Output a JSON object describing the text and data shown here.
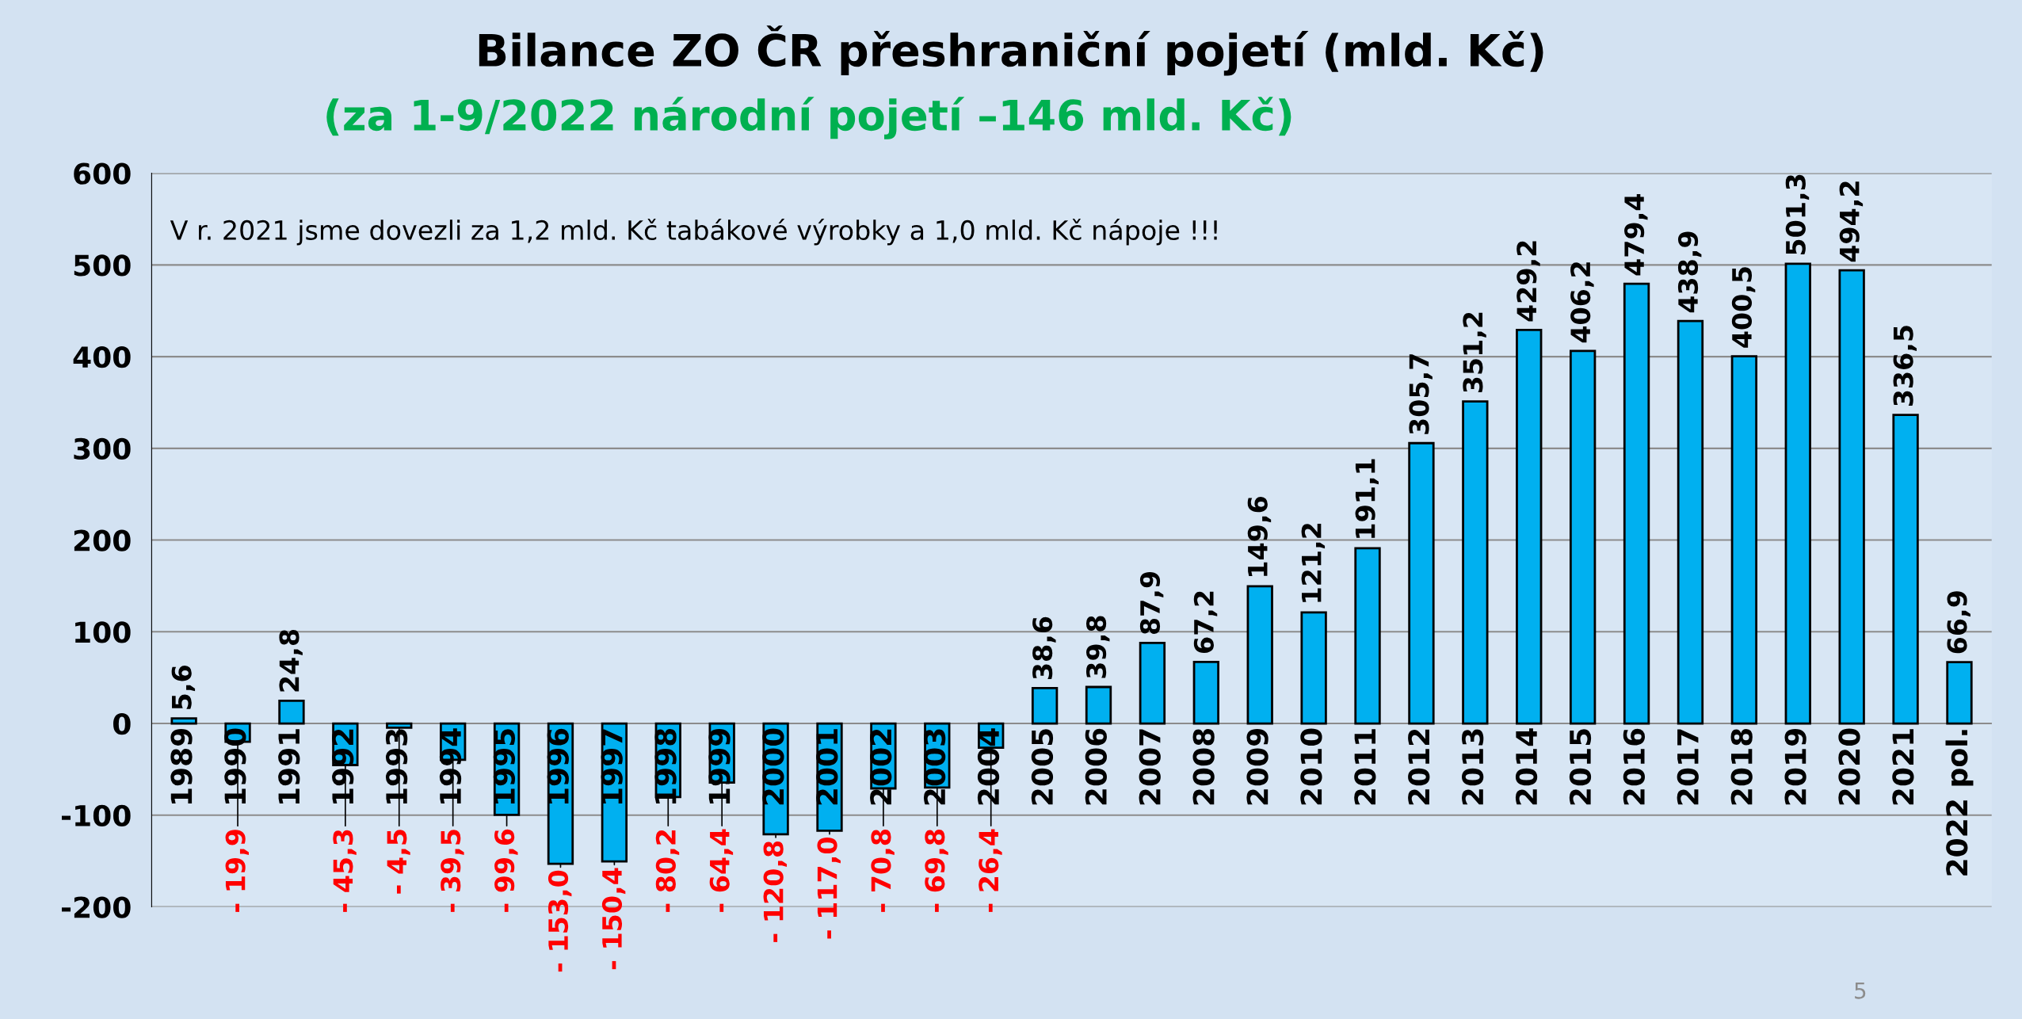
{
  "chart_data": {
    "type": "bar",
    "title": "Bilance ZO ČR přeshraniční pojetí (mld. Kč)",
    "subtitle": "(za 1-9/2022 národní pojetí –146 mld. Kč)",
    "annotations": [
      "V r. 2021 jsme dovezli za 1,2 mld. Kč tabákové výrobky a 1,0 mld. Kč nápoje !!!",
      "5"
    ],
    "categories": [
      "1989",
      "1990",
      "1991",
      "1992",
      "1993",
      "1994",
      "1995",
      "1996",
      "1997",
      "1998",
      "1999",
      "2000",
      "2001",
      "2002",
      "2003",
      "2004",
      "2005",
      "2006",
      "2007",
      "2008",
      "2009",
      "2010",
      "2011",
      "2012",
      "2013",
      "2014",
      "2015",
      "2016",
      "2017",
      "2018",
      "2019",
      "2020",
      "2021",
      "2022 pol."
    ],
    "values": [
      5.6,
      -19.9,
      24.8,
      -45.3,
      -4.5,
      -39.5,
      -99.6,
      -153.0,
      -150.4,
      -80.2,
      -64.4,
      -120.8,
      -117.0,
      -70.8,
      -69.8,
      -26.4,
      38.6,
      39.8,
      87.9,
      67.2,
      149.6,
      121.2,
      191.1,
      305.7,
      351.2,
      429.2,
      406.2,
      479.4,
      438.9,
      400.5,
      501.3,
      494.2,
      336.5,
      66.9
    ],
    "value_labels": [
      "5,6",
      "- 19,9",
      "24,8",
      "- 45,3",
      "- 4,5",
      "- 39,5",
      "- 99,6",
      "- 153,0",
      "- 150,4",
      "- 80,2",
      "- 64,4",
      "- 120,8",
      "- 117,0",
      "- 70,8",
      "- 69,8",
      "- 26,4",
      "38,6",
      "39,8",
      "87,9",
      "67,2",
      "149,6",
      "121,2",
      "191,1",
      "305,7",
      "351,2",
      "429,2",
      "406,2",
      "479,4",
      "438,9",
      "400,5",
      "501,3",
      "494,2",
      "336,5",
      "66,9"
    ],
    "color": "#00b0f0",
    "ylim": [
      -200,
      600
    ],
    "yticks": [
      -200,
      -100,
      0,
      100,
      200,
      300,
      400,
      500,
      600
    ],
    "grid": "y"
  }
}
